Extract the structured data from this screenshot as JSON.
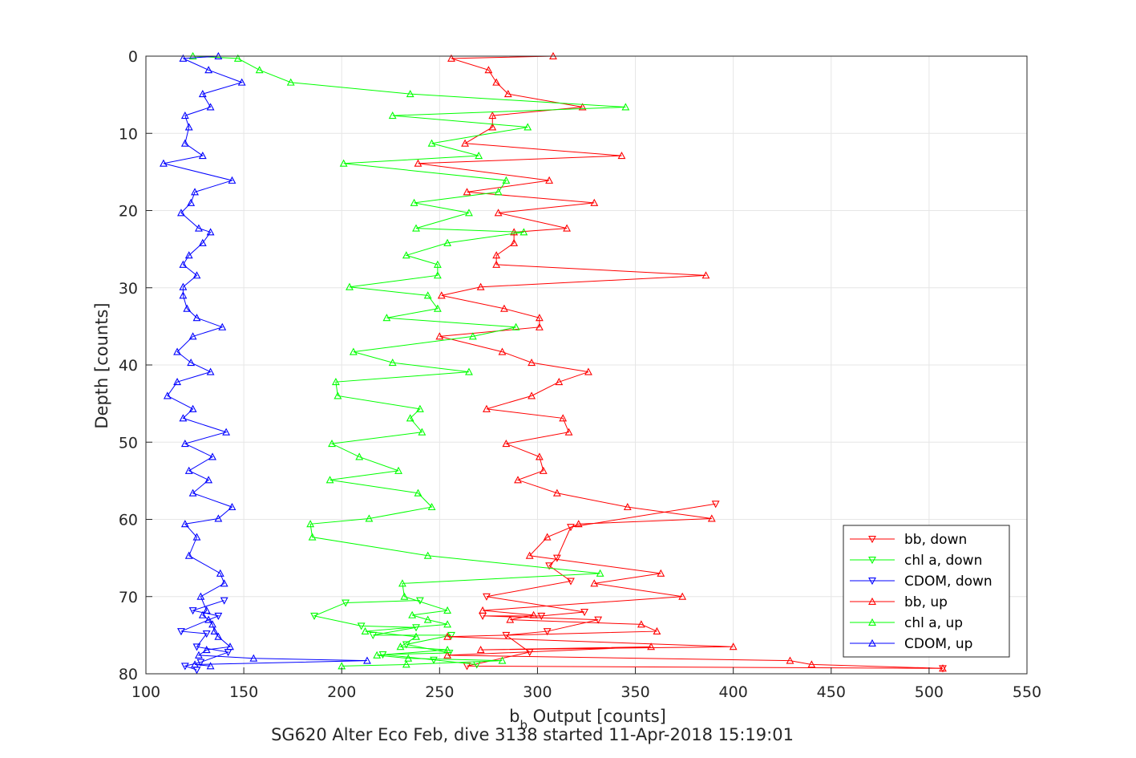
{
  "chart_data": {
    "type": "line",
    "xlabel_main": "b",
    "xlabel_sub": "b",
    "xlabel_rest": " Output [counts]",
    "ylabel": "Depth [counts]",
    "caption": "SG620 Alter Eco Feb, dive 3138 started 11-Apr-2018 15:19:01",
    "xlim": [
      100,
      550
    ],
    "ylim": [
      0,
      80
    ],
    "y_reversed": true,
    "grid": true,
    "legend_placement": "bottom-right",
    "xticks": [
      "100",
      "150",
      "200",
      "250",
      "300",
      "350",
      "400",
      "450",
      "500",
      "550"
    ],
    "yticks": [
      "0",
      "10",
      "20",
      "30",
      "40",
      "50",
      "60",
      "70",
      "80"
    ],
    "series": [
      {
        "name": "bb, down",
        "color": "#ff0000",
        "marker": "down",
        "points": [
          [
            507,
            79.3
          ],
          [
            264,
            79
          ],
          [
            296,
            77.2
          ],
          [
            284,
            75
          ],
          [
            305,
            74.5
          ],
          [
            331,
            73
          ],
          [
            272,
            72.5
          ],
          [
            302,
            72.5
          ],
          [
            324,
            72
          ],
          [
            274,
            70
          ],
          [
            317,
            68
          ],
          [
            306,
            66
          ],
          [
            310,
            65
          ],
          [
            317,
            61
          ],
          [
            391,
            58
          ]
        ]
      },
      {
        "name": "chl a, down",
        "color": "#00ff00",
        "marker": "down",
        "points": [
          [
            269,
            78.8
          ],
          [
            247,
            78.2
          ],
          [
            221,
            77.5
          ],
          [
            255,
            77.3
          ],
          [
            233,
            76.2
          ],
          [
            256,
            75
          ],
          [
            216,
            75
          ],
          [
            238,
            74
          ],
          [
            210,
            73.8
          ],
          [
            186,
            72.5
          ],
          [
            202,
            70.8
          ],
          [
            240,
            70.5
          ]
        ]
      },
      {
        "name": "CDOM, down",
        "color": "#0000ff",
        "marker": "down",
        "points": [
          [
            126,
            79.5
          ],
          [
            120,
            79
          ],
          [
            128,
            78.5
          ],
          [
            142,
            77.2
          ],
          [
            126,
            76.5
          ],
          [
            131,
            74.8
          ],
          [
            118,
            74.5
          ],
          [
            137,
            72.5
          ],
          [
            124,
            71.8
          ],
          [
            140,
            70.5
          ]
        ]
      },
      {
        "name": "bb, up",
        "color": "#ff0000",
        "marker": "up",
        "points": [
          [
            308,
            0
          ],
          [
            256,
            0.3
          ],
          [
            275,
            1.8
          ],
          [
            279,
            3.4
          ],
          [
            285,
            4.9
          ],
          [
            323,
            6.6
          ],
          [
            277,
            7.7
          ],
          [
            277,
            9.2
          ],
          [
            263,
            11.3
          ],
          [
            343,
            12.9
          ],
          [
            239,
            13.9
          ],
          [
            306,
            16.1
          ],
          [
            264,
            17.6
          ],
          [
            329,
            19
          ],
          [
            280,
            20.3
          ],
          [
            315,
            22.3
          ],
          [
            288,
            22.8
          ],
          [
            288,
            24.2
          ],
          [
            279,
            25.8
          ],
          [
            279,
            27
          ],
          [
            386,
            28.4
          ],
          [
            271,
            29.9
          ],
          [
            251,
            31
          ],
          [
            283,
            32.7
          ],
          [
            301,
            33.9
          ],
          [
            301,
            35.1
          ],
          [
            250,
            36.3
          ],
          [
            282,
            38.3
          ],
          [
            297,
            39.7
          ],
          [
            326,
            40.9
          ],
          [
            311,
            42.2
          ],
          [
            297,
            44
          ],
          [
            274,
            45.7
          ],
          [
            313,
            46.9
          ],
          [
            316,
            48.7
          ],
          [
            284,
            50.2
          ],
          [
            301,
            51.9
          ],
          [
            303,
            53.7
          ],
          [
            290,
            54.9
          ],
          [
            310,
            56.6
          ],
          [
            346,
            58.4
          ],
          [
            389,
            59.9
          ],
          [
            321,
            60.6
          ],
          [
            305,
            62.3
          ],
          [
            296,
            64.7
          ],
          [
            363,
            67
          ],
          [
            329,
            68.3
          ],
          [
            374,
            70
          ],
          [
            272,
            71.8
          ],
          [
            298,
            72.4
          ],
          [
            286,
            73
          ],
          [
            353,
            73.6
          ],
          [
            361,
            74.5
          ],
          [
            254,
            75.2
          ],
          [
            400,
            76.5
          ],
          [
            271,
            76.9
          ],
          [
            358,
            76.5
          ],
          [
            254,
            77.6
          ],
          [
            429,
            78.3
          ],
          [
            440,
            78.8
          ],
          [
            507,
            79.3
          ]
        ]
      },
      {
        "name": "chl a, up",
        "color": "#00ff00",
        "marker": "up",
        "points": [
          [
            124,
            0
          ],
          [
            147,
            0.3
          ],
          [
            158,
            1.8
          ],
          [
            174,
            3.4
          ],
          [
            235,
            4.9
          ],
          [
            345,
            6.6
          ],
          [
            226,
            7.7
          ],
          [
            295,
            9.2
          ],
          [
            246,
            11.3
          ],
          [
            270,
            12.9
          ],
          [
            201,
            13.9
          ],
          [
            284,
            16.1
          ],
          [
            280,
            17.6
          ],
          [
            237,
            19
          ],
          [
            265,
            20.3
          ],
          [
            238,
            22.3
          ],
          [
            293,
            22.8
          ],
          [
            254,
            24.2
          ],
          [
            233,
            25.8
          ],
          [
            249,
            27
          ],
          [
            249,
            28.4
          ],
          [
            204,
            29.9
          ],
          [
            244,
            31
          ],
          [
            249,
            32.7
          ],
          [
            223,
            33.9
          ],
          [
            289,
            35.1
          ],
          [
            267,
            36.3
          ],
          [
            206,
            38.3
          ],
          [
            226,
            39.7
          ],
          [
            265,
            40.9
          ],
          [
            197,
            42.2
          ],
          [
            198,
            44
          ],
          [
            240,
            45.7
          ],
          [
            235,
            46.9
          ],
          [
            241,
            48.7
          ],
          [
            195,
            50.2
          ],
          [
            209,
            51.9
          ],
          [
            229,
            53.7
          ],
          [
            194,
            54.9
          ],
          [
            239,
            56.6
          ],
          [
            246,
            58.4
          ],
          [
            214,
            59.9
          ],
          [
            184,
            60.6
          ],
          [
            185,
            62.3
          ],
          [
            244,
            64.7
          ],
          [
            332,
            67
          ],
          [
            231,
            68.3
          ],
          [
            232,
            70
          ],
          [
            254,
            71.8
          ],
          [
            236,
            72.4
          ],
          [
            244,
            73
          ],
          [
            254,
            73.6
          ],
          [
            212,
            74.5
          ],
          [
            238,
            75.2
          ],
          [
            230,
            76.5
          ],
          [
            254,
            76.9
          ],
          [
            218,
            77.6
          ],
          [
            234,
            78
          ],
          [
            282,
            78.3
          ],
          [
            233,
            78.8
          ],
          [
            200,
            79
          ]
        ]
      },
      {
        "name": "CDOM, up",
        "color": "#0000ff",
        "marker": "up",
        "points": [
          [
            137,
            0
          ],
          [
            119,
            0.3
          ],
          [
            132,
            1.8
          ],
          [
            149,
            3.4
          ],
          [
            129,
            4.9
          ],
          [
            133,
            6.6
          ],
          [
            120,
            7.7
          ],
          [
            122,
            9.2
          ],
          [
            120,
            11.3
          ],
          [
            129,
            12.9
          ],
          [
            109,
            13.9
          ],
          [
            144,
            16.1
          ],
          [
            125,
            17.6
          ],
          [
            123,
            19
          ],
          [
            118,
            20.3
          ],
          [
            127,
            22.3
          ],
          [
            133,
            22.8
          ],
          [
            129,
            24.2
          ],
          [
            122,
            25.8
          ],
          [
            119,
            27
          ],
          [
            126,
            28.4
          ],
          [
            119,
            29.9
          ],
          [
            119,
            31
          ],
          [
            121,
            32.7
          ],
          [
            126,
            33.9
          ],
          [
            139,
            35.1
          ],
          [
            124,
            36.3
          ],
          [
            116,
            38.3
          ],
          [
            123,
            39.7
          ],
          [
            133,
            40.9
          ],
          [
            116,
            42.2
          ],
          [
            111,
            44
          ],
          [
            124,
            45.7
          ],
          [
            119,
            46.9
          ],
          [
            141,
            48.7
          ],
          [
            120,
            50.2
          ],
          [
            134,
            51.9
          ],
          [
            122,
            53.7
          ],
          [
            132,
            54.9
          ],
          [
            124,
            56.6
          ],
          [
            144,
            58.4
          ],
          [
            137,
            59.9
          ],
          [
            120,
            60.6
          ],
          [
            126,
            62.3
          ],
          [
            122,
            64.7
          ],
          [
            138,
            67
          ],
          [
            140,
            68.3
          ],
          [
            128,
            70
          ],
          [
            131,
            71.8
          ],
          [
            129,
            72.4
          ],
          [
            132,
            73
          ],
          [
            134,
            73.6
          ],
          [
            135,
            74.5
          ],
          [
            137,
            75.2
          ],
          [
            143,
            76.5
          ],
          [
            131,
            76.9
          ],
          [
            127,
            77.6
          ],
          [
            155,
            78
          ],
          [
            213,
            78.3
          ],
          [
            125,
            78.8
          ],
          [
            133,
            79
          ]
        ]
      }
    ]
  }
}
